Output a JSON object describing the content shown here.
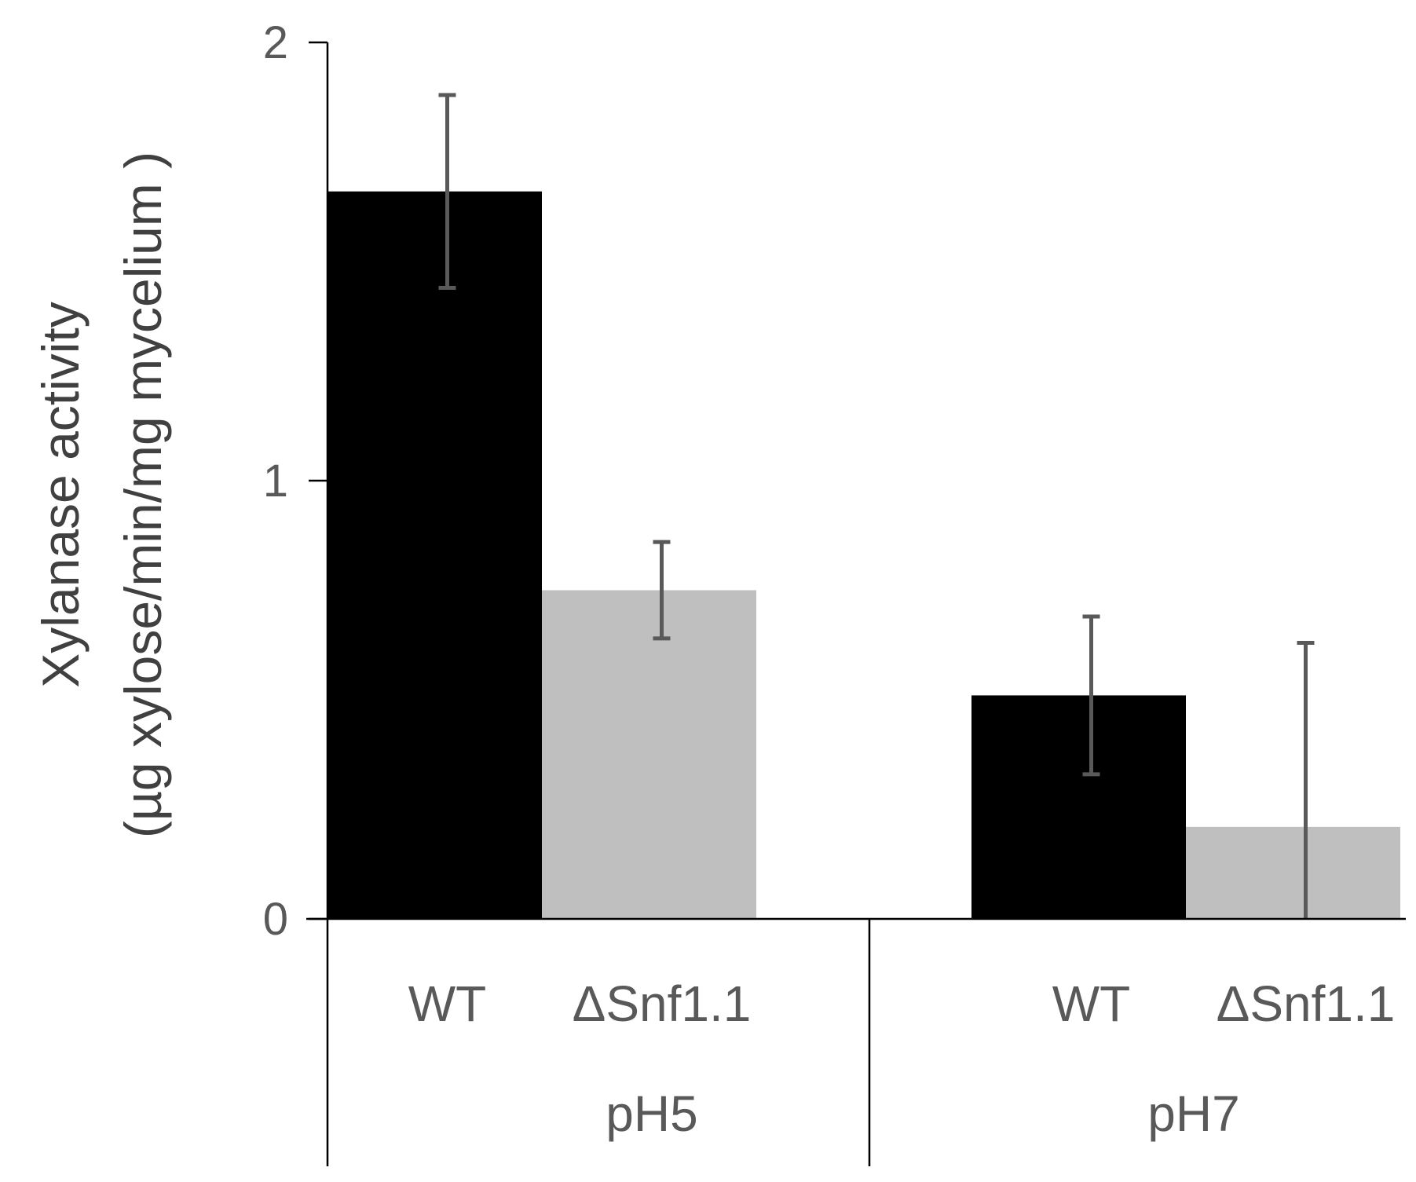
{
  "chart_data": {
    "type": "bar",
    "title": "",
    "ylabel_line1": "Xylanase activity",
    "ylabel_line2": "(µg xylose/min/mg mycelium )",
    "ylim": [
      0,
      2
    ],
    "yticks": [
      "0",
      "1",
      "2"
    ],
    "grid": false,
    "legend": "none",
    "groups": [
      {
        "label": "pH5",
        "bars": [
          {
            "category": "WT",
            "value": 1.66,
            "error": 0.22,
            "color": "#000000"
          },
          {
            "category": "ΔSnf1.1",
            "value": 0.75,
            "error": 0.11,
            "color": "#bfbfbf"
          }
        ]
      },
      {
        "label": "pH7",
        "bars": [
          {
            "category": "WT",
            "value": 0.51,
            "error": 0.18,
            "color": "#000000"
          },
          {
            "category": "ΔSnf1.1",
            "value": 0.21,
            "error": 0.42,
            "color": "#bfbfbf"
          }
        ]
      }
    ]
  }
}
